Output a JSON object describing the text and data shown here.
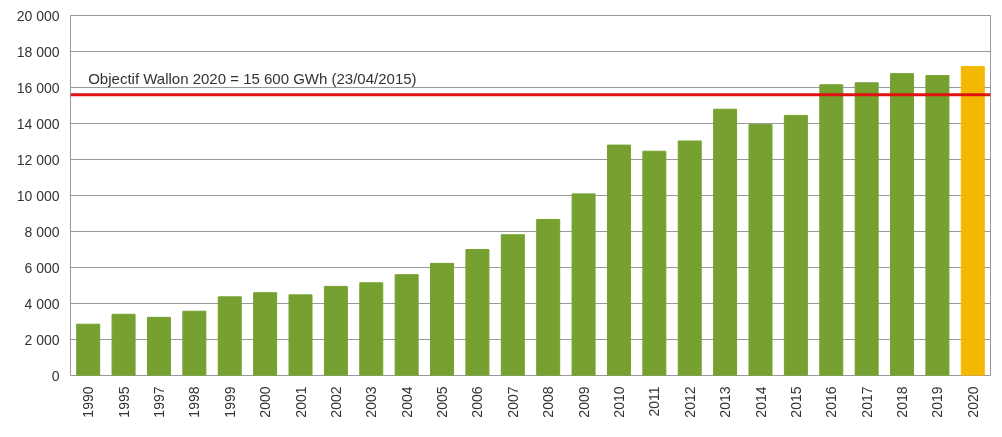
{
  "chart_data": {
    "type": "bar",
    "categories": [
      "1990",
      "1995",
      "1997",
      "1998",
      "1999",
      "2000",
      "2001",
      "2002",
      "2003",
      "2004",
      "2005",
      "2006",
      "2007",
      "2008",
      "2009",
      "2010",
      "2011",
      "2012",
      "2013",
      "2014",
      "2015",
      "2016",
      "2017",
      "2018",
      "2019",
      "2020"
    ],
    "values": [
      2850,
      3400,
      3230,
      3570,
      4370,
      4600,
      4480,
      4950,
      5150,
      5600,
      6230,
      7000,
      7820,
      8670,
      10090,
      12800,
      12460,
      13030,
      14790,
      13940,
      14450,
      16150,
      16260,
      16770,
      16660,
      17170
    ],
    "colors": [
      "#76a130",
      "#76a130",
      "#76a130",
      "#76a130",
      "#76a130",
      "#76a130",
      "#76a130",
      "#76a130",
      "#76a130",
      "#76a130",
      "#76a130",
      "#76a130",
      "#76a130",
      "#76a130",
      "#76a130",
      "#76a130",
      "#76a130",
      "#76a130",
      "#76a130",
      "#76a130",
      "#76a130",
      "#76a130",
      "#76a130",
      "#76a130",
      "#76a130",
      "#f5b800"
    ],
    "ylim": [
      0,
      20000
    ],
    "yticks": [
      0,
      {
        "value": 2000,
        "label": "2 000"
      },
      {
        "value": 4000,
        "label": "4 000"
      },
      {
        "value": 6000,
        "label": "6 000"
      },
      {
        "value": 8000,
        "label": "8 000"
      },
      {
        "value": 10000,
        "label": "10 000"
      },
      {
        "value": 12000,
        "label": "12 000"
      },
      {
        "value": 14000,
        "label": "14 000"
      },
      {
        "value": 16000,
        "label": "16 000"
      },
      {
        "value": 18000,
        "label": "18 000"
      },
      {
        "value": 20000,
        "label": "20 000"
      }
    ],
    "ref_lines": [
      {
        "axis": "y",
        "value": 15600,
        "label": "Objectif Wallon 2020 = 15 600 GWh (23/04/2015)",
        "color": "#e01010"
      }
    ],
    "grid": "y"
  }
}
